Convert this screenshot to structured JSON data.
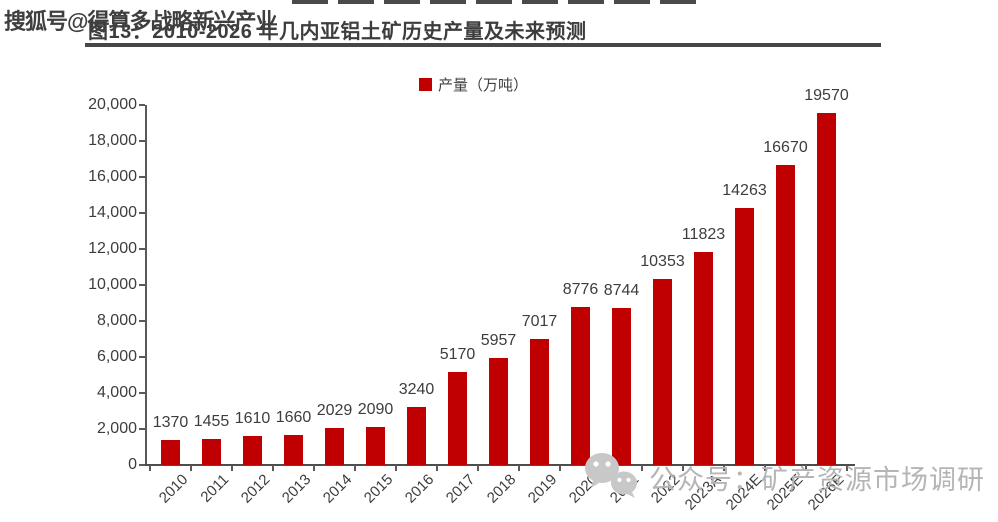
{
  "watermarks": {
    "sohu": "搜狐号@得算多战略新兴产业",
    "wechat_text": "公众号：矿产资源市场调研",
    "wechat_icon": "wechat-logo"
  },
  "chart_data": {
    "type": "bar",
    "title": "图13：2010-2026 年几内亚铝土矿历史产量及未来预测",
    "legend_label": "产量（万吨）",
    "legend_position": "top",
    "categories": [
      "2010",
      "2011",
      "2012",
      "2013",
      "2014",
      "2015",
      "2016",
      "2017",
      "2018",
      "2019",
      "2020",
      "2021",
      "2022",
      "2023A",
      "2024E",
      "2025E",
      "2026E"
    ],
    "values": [
      1370,
      1455,
      1610,
      1660,
      2029,
      2090,
      3240,
      5170,
      5957,
      7017,
      8776,
      8744,
      10353,
      11823,
      14263,
      16670,
      19570
    ],
    "xlabel": "",
    "ylabel": "",
    "ylim": [
      0,
      20000
    ],
    "ytick_interval": 2000,
    "grid": false,
    "data_labels": true,
    "bar_color": "#C00000",
    "axis_color": "#595959",
    "text_color": "#3d3d3d"
  }
}
